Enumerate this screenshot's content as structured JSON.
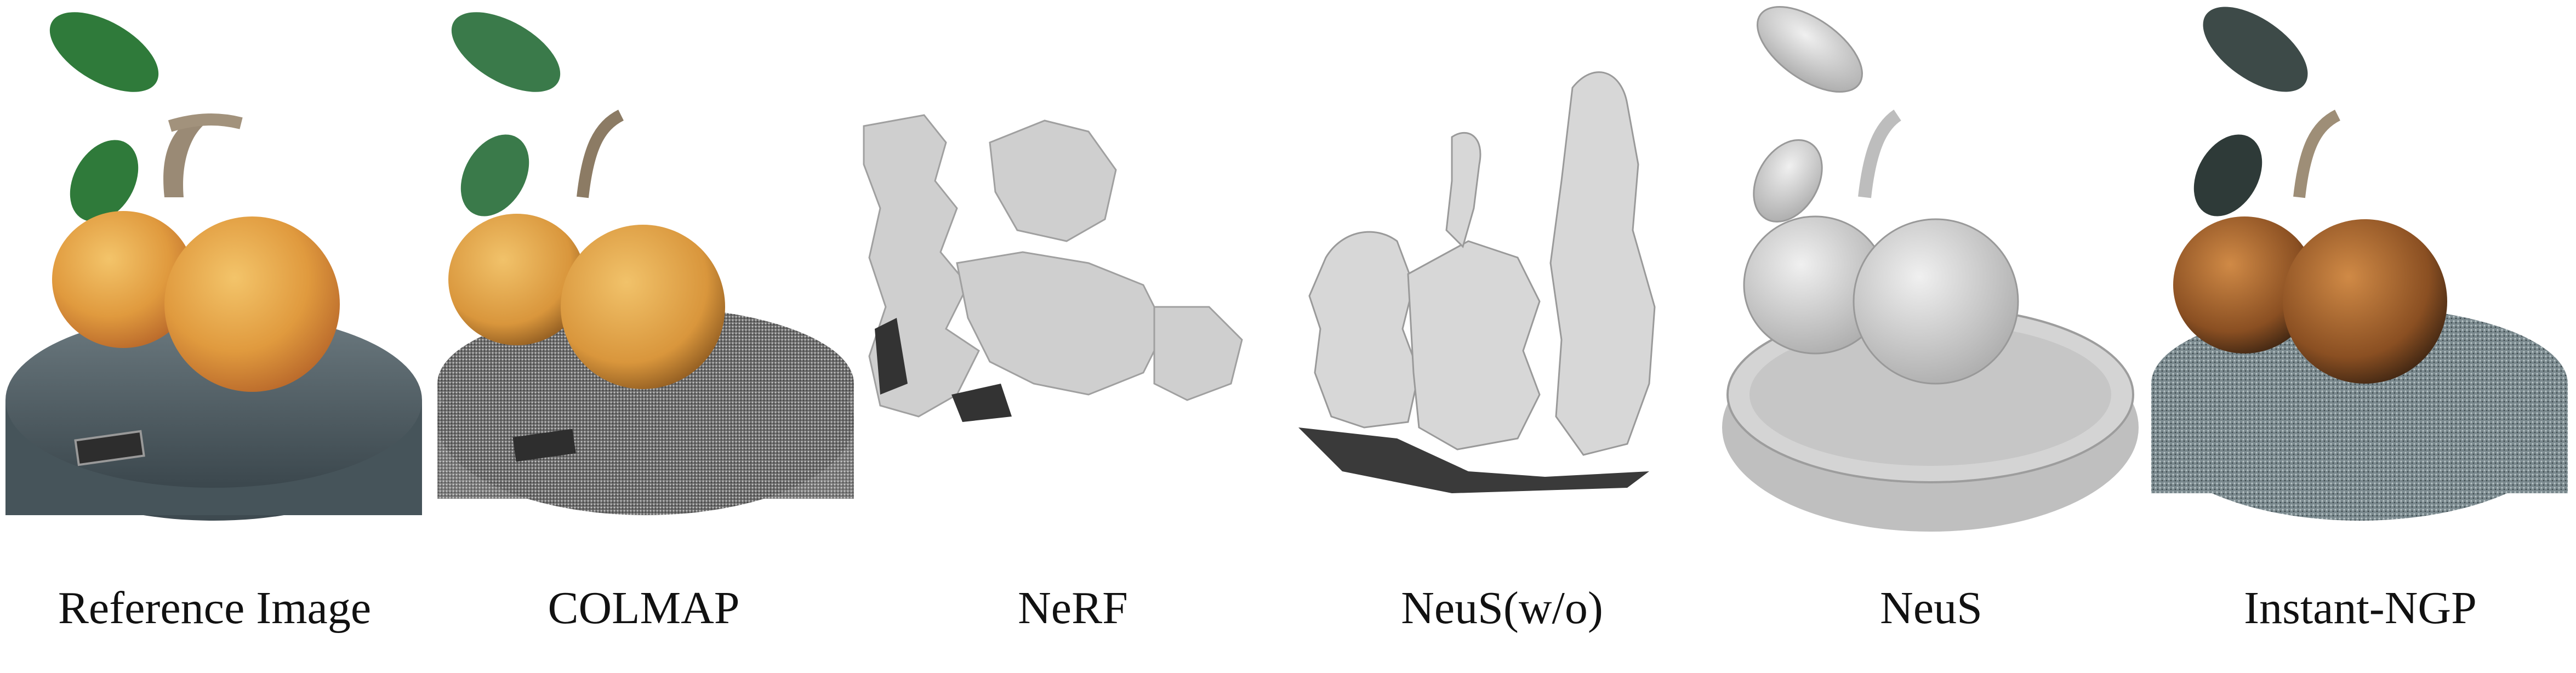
{
  "figure": {
    "panels": [
      {
        "caption": "Reference Image"
      },
      {
        "caption": "COLMAP"
      },
      {
        "caption": "NeRF"
      },
      {
        "caption": "NeuS(w/o)"
      },
      {
        "caption": "NeuS"
      },
      {
        "caption": "Instant-NGP"
      }
    ]
  }
}
